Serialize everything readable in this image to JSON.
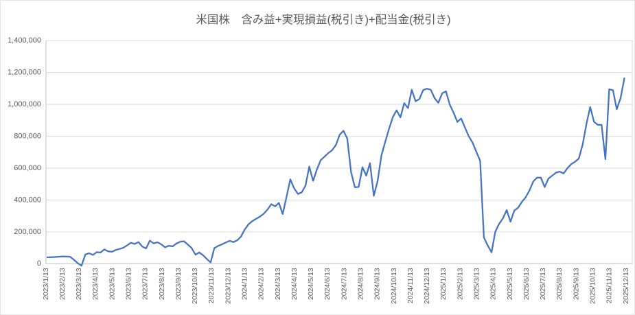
{
  "title": "米国株　含み益+実現損益(税引き)+配当金(税引き)",
  "chart_data": {
    "type": "line",
    "title": "米国株　含み益+実現損益(税引き)+配当金(税引き)",
    "xlabel": "",
    "ylabel": "",
    "ylim": [
      0,
      1400000
    ],
    "y_tick_interval": 200000,
    "grid": true,
    "legend": "none",
    "colors": {
      "series": "#4472C4",
      "gridline": "#D9D9D9",
      "axis_line": "#BFBFBF",
      "tick_label": "#595959",
      "title": "#595959",
      "background": "#FFFFFF"
    },
    "y_tick_labels": [
      "0",
      "200,000",
      "400,000",
      "600,000",
      "800,000",
      "1,000,000",
      "1,200,000",
      "1,400,000"
    ],
    "x_tick_labels": [
      "2023/1/13",
      "2023/2/13",
      "2023/3/13",
      "2023/4/13",
      "2023/5/13",
      "2023/6/13",
      "2023/7/13",
      "2023/8/13",
      "2023/9/13",
      "2023/10/13",
      "2023/11/13",
      "2023/12/13",
      "2024/1/13",
      "2024/2/13",
      "2024/3/13",
      "2024/4/13",
      "2024/5/13",
      "2024/6/13",
      "2024/7/13",
      "2024/8/13",
      "2024/9/13",
      "2024/10/13",
      "2024/11/13",
      "2024/12/13",
      "2025/1/13",
      "2025/2/13",
      "2025/3/13",
      "2025/4/13",
      "2025/5/13",
      "2025/6/13",
      "2025/7/13",
      "2025/8/13",
      "2025/9/13",
      "2025/10/13",
      "2025/11/13",
      "2025/12/13"
    ],
    "series": [
      {
        "name": "含み益+実現損益(税引き)+配当金(税引き)",
        "x_first": "2023/1/13",
        "x_interval": "weekly",
        "values": [
          40000,
          41000,
          42000,
          44000,
          46000,
          45000,
          44000,
          25000,
          3000,
          -12000,
          58000,
          66000,
          55000,
          73000,
          70000,
          90000,
          78000,
          75000,
          86000,
          93000,
          100000,
          115000,
          132000,
          124000,
          136000,
          108000,
          96000,
          145000,
          128000,
          135000,
          122000,
          103000,
          113000,
          109000,
          127000,
          138000,
          141000,
          120000,
          99000,
          57000,
          71000,
          54000,
          30000,
          8000,
          98000,
          112000,
          122000,
          133000,
          144000,
          136000,
          147000,
          170000,
          215000,
          248000,
          268000,
          282000,
          296000,
          314000,
          340000,
          374000,
          360000,
          382000,
          312000,
          420000,
          530000,
          474000,
          438000,
          448000,
          490000,
          610000,
          520000,
          592000,
          650000,
          672000,
          695000,
          712000,
          745000,
          810000,
          835000,
          786000,
          575000,
          480000,
          482000,
          606000,
          553000,
          632000,
          427000,
          520000,
          680000,
          764000,
          847000,
          920000,
          963000,
          919000,
          1008000,
          977000,
          1092000,
          1020000,
          1034000,
          1090000,
          1099000,
          1092000,
          1040000,
          1010000,
          1070000,
          1082000,
          1000000,
          948000,
          890000,
          912000,
          855000,
          800000,
          761000,
          704000,
          646000,
          165000,
          115000,
          72000,
          201000,
          250000,
          285000,
          337000,
          264000,
          333000,
          352000,
          388000,
          417000,
          460000,
          517000,
          540000,
          541000,
          481000,
          534000,
          553000,
          572000,
          578000,
          567000,
          600000,
          625000,
          640000,
          660000,
          747000,
          876000,
          984000,
          891000,
          872000,
          872000,
          656000,
          1095000,
          1089000,
          970000,
          1040000,
          1164000
        ]
      }
    ]
  }
}
